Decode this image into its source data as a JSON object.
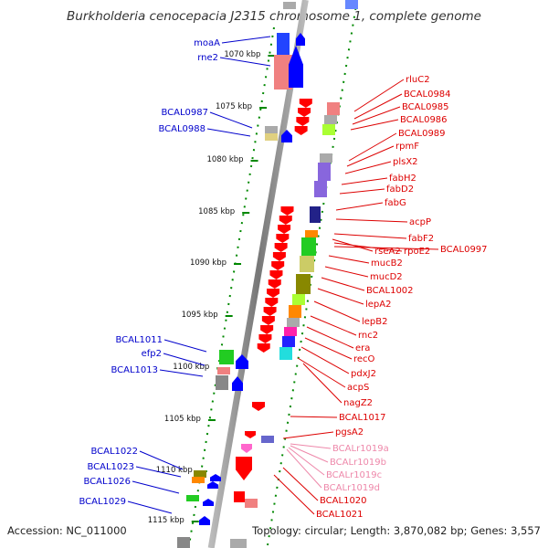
{
  "title": "Burkholderia cenocepacia J2315 chromosome 1, complete genome",
  "footer": {
    "accession": "Accession: NC_011000",
    "summary": "Topology: circular; Length: 3,870,082 bp; Genes: 3,557"
  },
  "colors": {
    "forward_label": "#0000cc",
    "reverse_label": "#dd0000",
    "rna_label": "#ee88aa",
    "backbone": "#999999",
    "tick": "#008800"
  },
  "kbp_ticks": [
    "1070 kbp",
    "1075 kbp",
    "1080 kbp",
    "1085 kbp",
    "1090 kbp",
    "1095 kbp",
    "1100 kbp",
    "1105 kbp",
    "1110 kbp",
    "1115 kbp"
  ],
  "forward_genes": [
    "moaA",
    "rne2",
    "BCAL0987",
    "BCAL0988",
    "BCAL1011",
    "efp2",
    "BCAL1013",
    "BCAL1022",
    "BCAL1023",
    "BCAL1026",
    "BCAL1029"
  ],
  "reverse_genes": [
    "rluC2",
    "BCAL0984",
    "BCAL0985",
    "BCAL0986",
    "BCAL0989",
    "rpmF",
    "plsX2",
    "fabH2",
    "fabD2",
    "fabG",
    "acpP",
    "fabF2",
    "rseA2",
    "rpoE2",
    "BCAL0997",
    "mucB2",
    "mucD2",
    "BCAL1002",
    "lepA2",
    "lepB2",
    "rnc2",
    "era",
    "recO",
    "pdxJ2",
    "acpS",
    "nagZ2",
    "BCAL1017",
    "pgsA2",
    "BCAL1020",
    "BCAL1021"
  ],
  "rna_genes": [
    "BCALr1019a",
    "BCALr1019b",
    "BCALr1019c",
    "BCALr1019d"
  ]
}
